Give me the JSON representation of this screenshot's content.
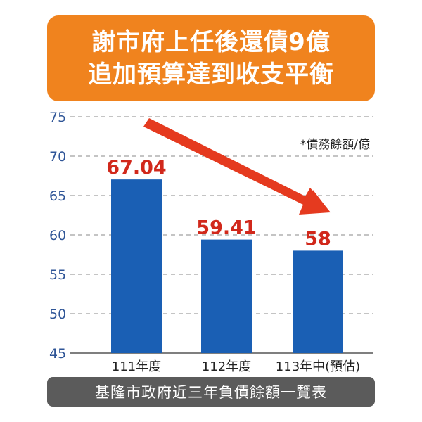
{
  "title_lines": [
    "謝市府上任後還債9億",
    "追加預算達到收支平衡"
  ],
  "unit_note": "*債務餘額/億",
  "footer": "基隆市政府近三年負債餘額一覽表",
  "colors": {
    "title_bg": "#f0831e",
    "bar": "#1a5fb4",
    "value_label": "#d1281b",
    "arrow": "#e53a1f",
    "axis_text": "#2f5597",
    "footer_bg": "#5b5b5b"
  },
  "chart_data": {
    "type": "bar",
    "categories": [
      "111年度",
      "112年度",
      "113年中(預估)"
    ],
    "values": [
      67.04,
      59.41,
      58
    ],
    "value_labels": [
      "67.04",
      "59.41",
      "58"
    ],
    "ylim": [
      45,
      75
    ],
    "yticks": [
      45,
      50,
      55,
      60,
      65,
      70,
      75
    ],
    "grid": true,
    "trend_arrow": true
  }
}
